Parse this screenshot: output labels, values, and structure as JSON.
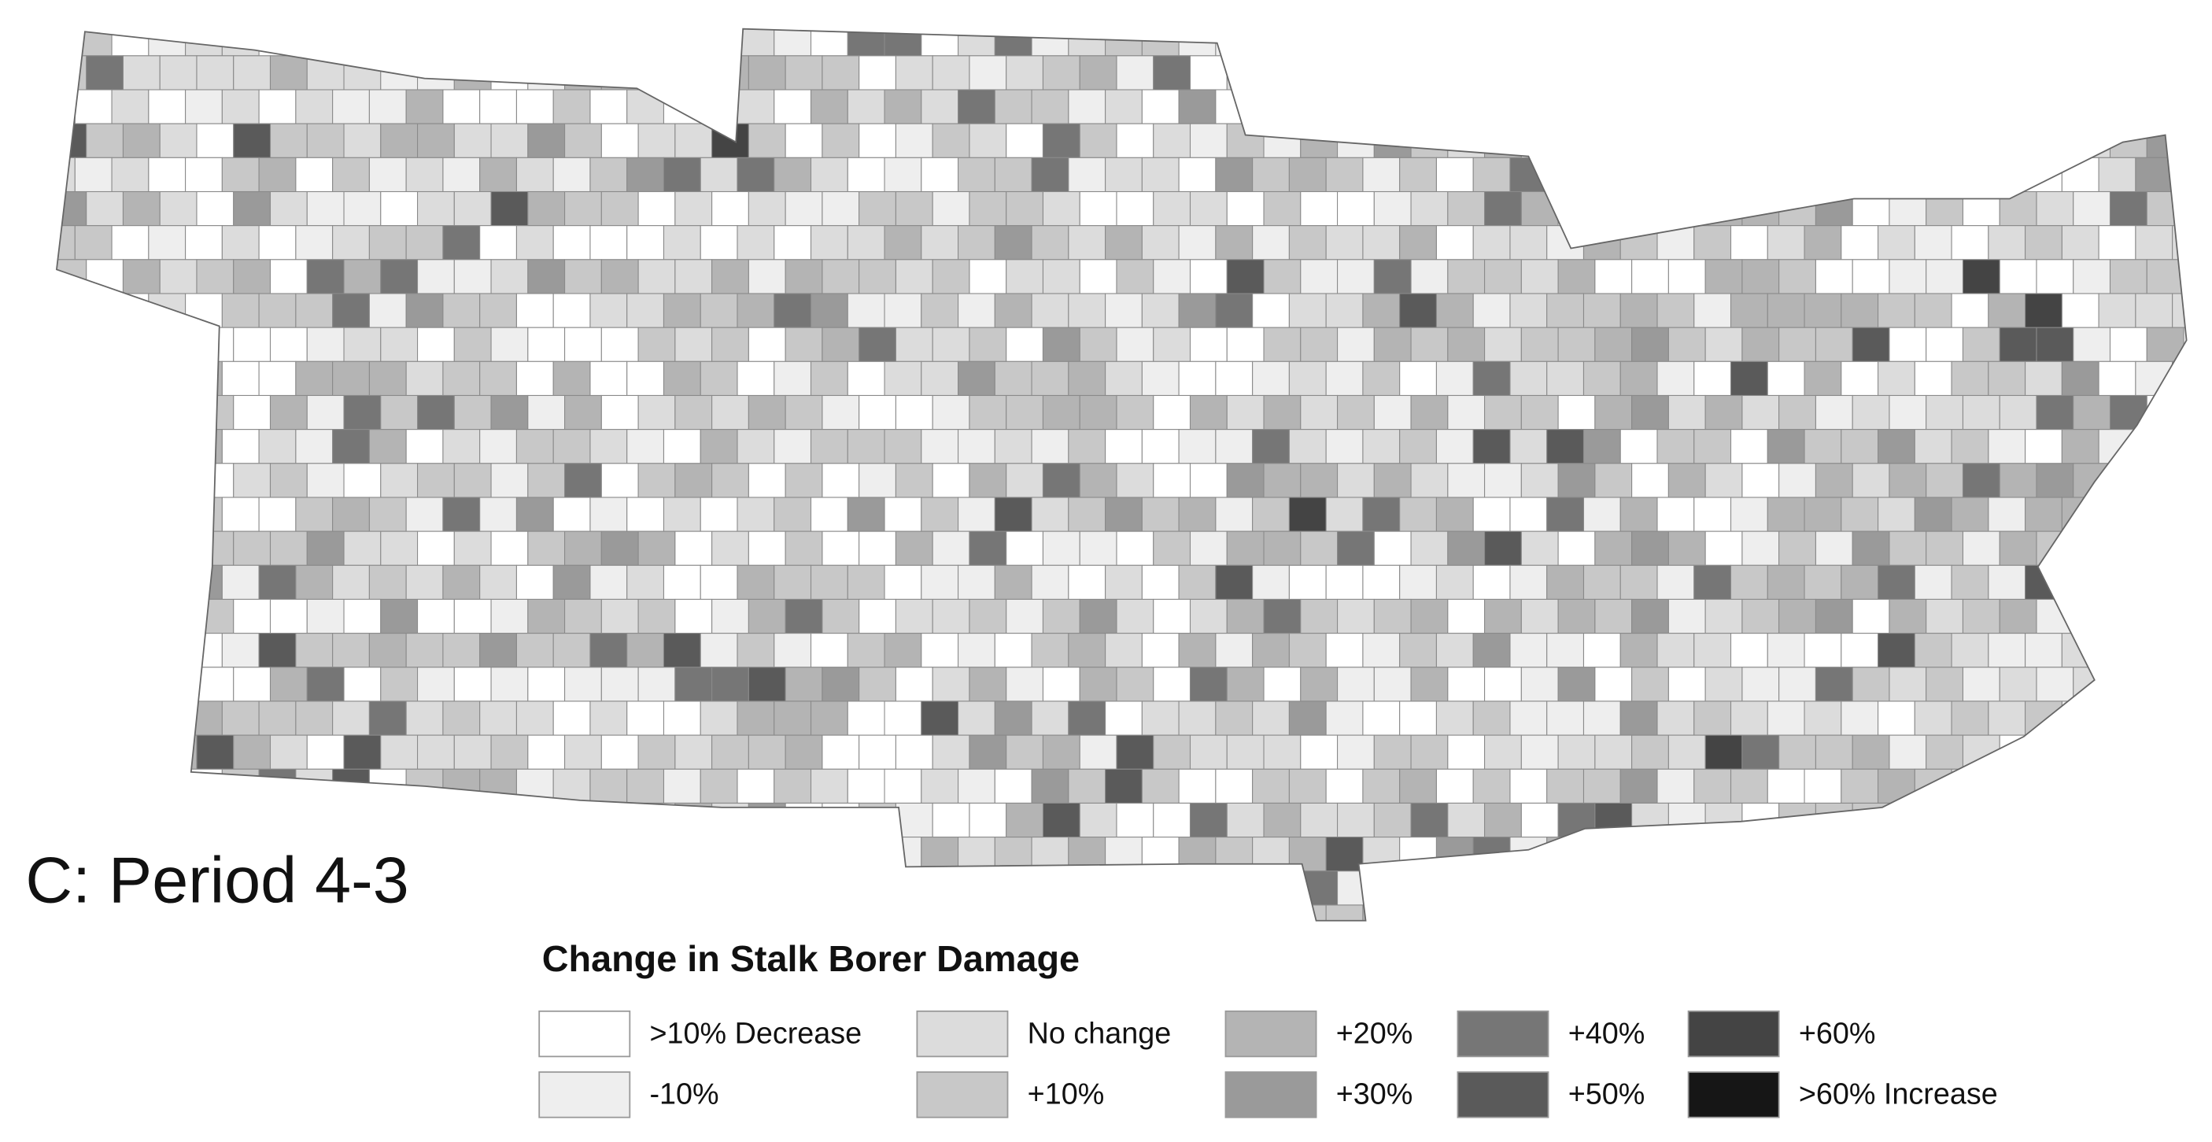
{
  "panel_label": "C:  Period 4-3",
  "legend": {
    "title": "Change in Stalk Borer Damage",
    "items": [
      {
        "label": ">10% Decrease",
        "color": "#ffffff"
      },
      {
        "label": "-10%",
        "color": "#eeeeee"
      },
      {
        "label": "No change",
        "color": "#dcdcdc"
      },
      {
        "label": "+10%",
        "color": "#c8c8c8"
      },
      {
        "label": "+20%",
        "color": "#b4b4b4"
      },
      {
        "label": "+30%",
        "color": "#9a9a9a"
      },
      {
        "label": "+40%",
        "color": "#767676"
      },
      {
        "label": "+50%",
        "color": "#5a5a5a"
      },
      {
        "label": "+60%",
        "color": "#444444"
      },
      {
        "label": ">60% Increase",
        "color": "#161616"
      }
    ]
  }
}
